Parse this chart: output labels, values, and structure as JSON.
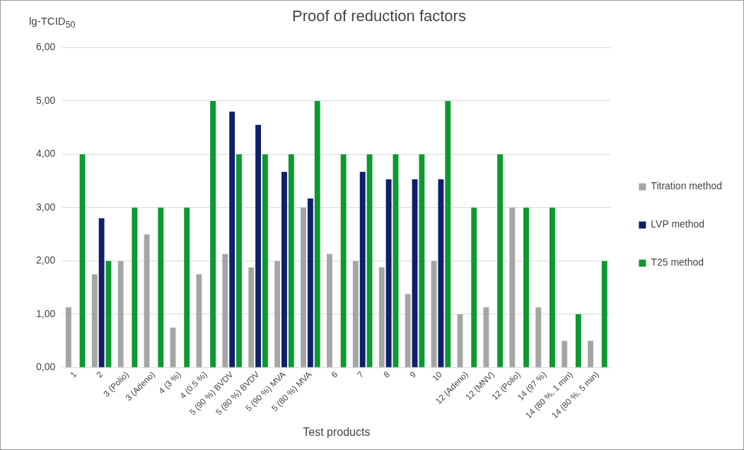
{
  "chart_data": {
    "type": "bar",
    "title": "Proof of reduction factors",
    "xlabel": "Test products",
    "ylabel": "lg-TCID$_{50}$",
    "categories": [
      "1",
      "2",
      "3 (Polio)",
      "3 (Adeno)",
      "4 (3 %)",
      "4 (0.5 %)",
      "5 (90 %) BVDV",
      "5 (80 %) BVDV",
      "5 (90 %) MVA",
      "5 (80 %) MVA",
      "6",
      "7",
      "8",
      "9",
      "10",
      "12 (Adeno)",
      "12 (MNV)",
      "12 (Polio)",
      "14 (97 %)",
      "14 (80 %, 1 min)",
      "14 (80 %, 5 min)"
    ],
    "series": [
      {
        "name": "Titration method",
        "color": "#a5a5a5",
        "values": [
          1.13,
          1.75,
          2.0,
          2.5,
          0.75,
          1.75,
          2.13,
          1.88,
          2.0,
          3.0,
          2.13,
          2.0,
          1.88,
          1.38,
          2.0,
          1.0,
          1.13,
          3.0,
          1.13,
          0.5,
          0.5
        ]
      },
      {
        "name": "LVP method",
        "color": "#0e1f6b",
        "values": [
          null,
          2.8,
          null,
          null,
          null,
          null,
          4.8,
          4.55,
          3.67,
          3.17,
          null,
          3.67,
          3.53,
          3.53,
          3.53,
          null,
          null,
          null,
          null,
          null,
          null
        ]
      },
      {
        "name": "T25 method",
        "color": "#0a9a2e",
        "values": [
          4,
          2,
          3,
          3,
          3,
          5,
          4,
          4,
          4,
          5,
          4,
          4,
          4,
          4,
          5,
          3,
          4,
          3,
          3,
          1,
          2
        ]
      }
    ],
    "ylim": [
      0,
      6
    ],
    "yticks": [
      {
        "value": 0,
        "label": "0,00"
      },
      {
        "value": 1,
        "label": "1,00"
      },
      {
        "value": 2,
        "label": "2,00"
      },
      {
        "value": 3,
        "label": "3,00"
      },
      {
        "value": 4,
        "label": "4,00"
      },
      {
        "value": 5,
        "label": "5,00"
      },
      {
        "value": 6,
        "label": "6,00"
      }
    ],
    "grid": "y",
    "legend": "right"
  }
}
